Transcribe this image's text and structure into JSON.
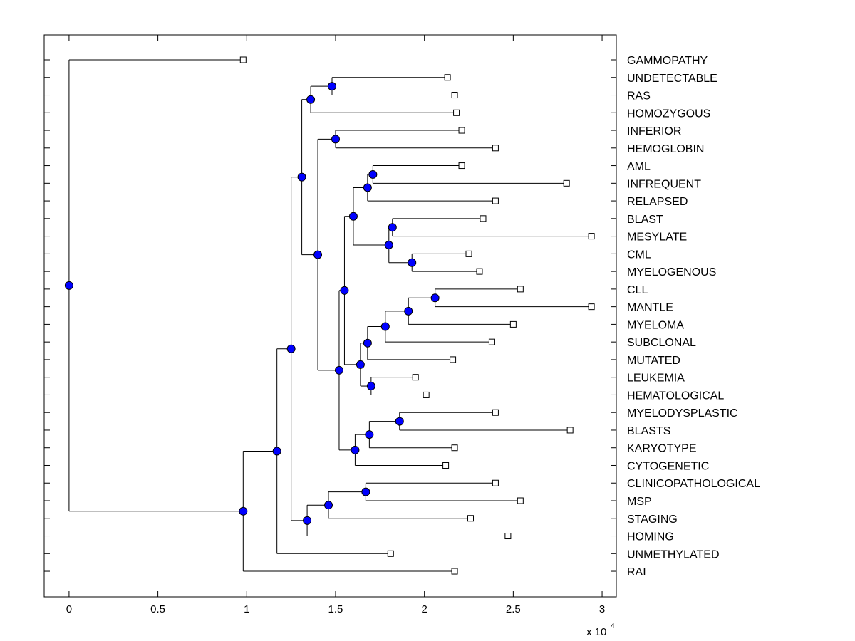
{
  "chart_data": {
    "type": "dendrogram",
    "title": "",
    "xlabel": "",
    "ylabel": "",
    "xlim": [
      -1400,
      30800
    ],
    "x_ticks": [
      0,
      5000,
      10000,
      15000,
      20000,
      25000,
      30000
    ],
    "x_tick_labels": [
      "0",
      "0.5",
      "1",
      "1.5",
      "2",
      "2.5",
      "3"
    ],
    "x_multiplier": {
      "base": "x 10",
      "exponent": "4"
    },
    "grid": false,
    "node_color": "#0000ff",
    "leaves": [
      {
        "label": "GAMMOPATHY",
        "value": 9800
      },
      {
        "label": "UNDETECTABLE",
        "value": 21300
      },
      {
        "label": "RAS",
        "value": 21700
      },
      {
        "label": "HOMOZYGOUS",
        "value": 21800
      },
      {
        "label": "INFERIOR",
        "value": 22100
      },
      {
        "label": "HEMOGLOBIN",
        "value": 24000
      },
      {
        "label": "AML",
        "value": 22100
      },
      {
        "label": "INFREQUENT",
        "value": 28000
      },
      {
        "label": "RELAPSED",
        "value": 24000
      },
      {
        "label": "BLAST",
        "value": 23300
      },
      {
        "label": "MESYLATE",
        "value": 29400
      },
      {
        "label": "CML",
        "value": 22500
      },
      {
        "label": "MYELOGENOUS",
        "value": 23100
      },
      {
        "label": "CLL",
        "value": 25400
      },
      {
        "label": "MANTLE",
        "value": 29400
      },
      {
        "label": "MYELOMA",
        "value": 25000
      },
      {
        "label": "SUBCLONAL",
        "value": 23800
      },
      {
        "label": "MUTATED",
        "value": 21600
      },
      {
        "label": "LEUKEMIA",
        "value": 19500
      },
      {
        "label": "HEMATOLOGICAL",
        "value": 20100
      },
      {
        "label": "MYELODYSPLASTIC",
        "value": 24000
      },
      {
        "label": "BLASTS",
        "value": 28200
      },
      {
        "label": "KARYOTYPE",
        "value": 21700
      },
      {
        "label": "CYTOGENETIC",
        "value": 21200
      },
      {
        "label": "CLINICOPATHOLOGICAL",
        "value": 24000
      },
      {
        "label": "MSP",
        "value": 25400
      },
      {
        "label": "STAGING",
        "value": 22600
      },
      {
        "label": "HOMING",
        "value": 24700
      },
      {
        "label": "UNMETHYLATED",
        "value": 18100
      },
      {
        "label": "RAI",
        "value": 21700
      }
    ],
    "nodes": [
      {
        "id": "n1",
        "value": 14800,
        "children": [
          "L1",
          "L2"
        ]
      },
      {
        "id": "n2",
        "value": 13600,
        "children": [
          "n1",
          "L3"
        ]
      },
      {
        "id": "n3",
        "value": 15000,
        "children": [
          "L4",
          "L5"
        ]
      },
      {
        "id": "n4",
        "value": 17100,
        "children": [
          "L6",
          "L7"
        ]
      },
      {
        "id": "n5",
        "value": 16800,
        "children": [
          "n4",
          "L8"
        ]
      },
      {
        "id": "n6",
        "value": 18200,
        "children": [
          "L9",
          "L10"
        ]
      },
      {
        "id": "n7",
        "value": 19300,
        "children": [
          "L11",
          "L12"
        ]
      },
      {
        "id": "n8",
        "value": 18000,
        "children": [
          "n6",
          "n7"
        ]
      },
      {
        "id": "n9",
        "value": 16000,
        "children": [
          "n5",
          "n8"
        ]
      },
      {
        "id": "n10",
        "value": 20600,
        "children": [
          "L13",
          "L14"
        ]
      },
      {
        "id": "n11",
        "value": 19100,
        "children": [
          "n10",
          "L15"
        ]
      },
      {
        "id": "n12",
        "value": 17800,
        "children": [
          "n11",
          "L16"
        ]
      },
      {
        "id": "n13",
        "value": 16800,
        "children": [
          "n12",
          "L17"
        ]
      },
      {
        "id": "n14",
        "value": 17000,
        "children": [
          "L18",
          "L19"
        ]
      },
      {
        "id": "n15",
        "value": 16400,
        "children": [
          "n13",
          "n14"
        ]
      },
      {
        "id": "n16",
        "value": 15500,
        "children": [
          "n9",
          "n15"
        ]
      },
      {
        "id": "n17",
        "value": 18600,
        "children": [
          "L20",
          "L21"
        ]
      },
      {
        "id": "n18",
        "value": 16900,
        "children": [
          "n17",
          "L22"
        ]
      },
      {
        "id": "n19",
        "value": 16100,
        "children": [
          "n18",
          "L23"
        ]
      },
      {
        "id": "n20",
        "value": 15200,
        "children": [
          "n16",
          "n19"
        ]
      },
      {
        "id": "n21",
        "value": 14000,
        "children": [
          "n3",
          "n20"
        ]
      },
      {
        "id": "n22",
        "value": 13100,
        "children": [
          "n2",
          "n21"
        ]
      },
      {
        "id": "n23",
        "value": 16700,
        "children": [
          "L24",
          "L25"
        ]
      },
      {
        "id": "n24",
        "value": 14600,
        "children": [
          "n23",
          "L26"
        ]
      },
      {
        "id": "n25",
        "value": 13400,
        "children": [
          "n24",
          "L27"
        ]
      },
      {
        "id": "n26",
        "value": 12500,
        "children": [
          "n22",
          "n25"
        ]
      },
      {
        "id": "n27",
        "value": 11700,
        "children": [
          "n26",
          "L28"
        ]
      },
      {
        "id": "n28",
        "value": 9800,
        "children": [
          "n27",
          "L29"
        ]
      },
      {
        "id": "n29",
        "value": 0,
        "children": [
          "L0",
          "n28"
        ]
      }
    ]
  }
}
